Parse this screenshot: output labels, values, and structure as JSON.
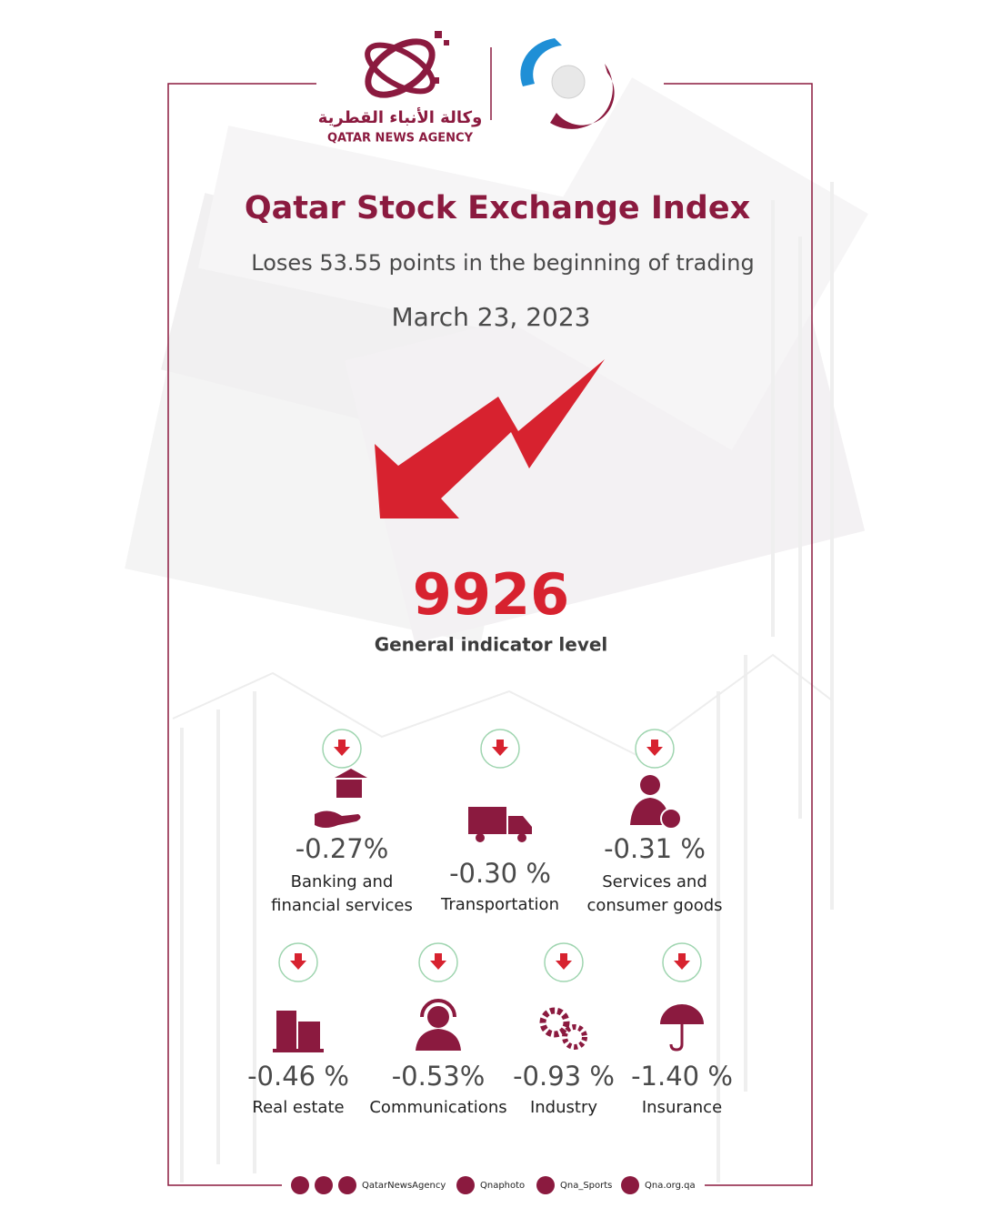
{
  "logo": {
    "arabic": "وكالة الأنباء القطرية",
    "english": "QATAR NEWS AGENCY"
  },
  "header": {
    "title": "Qatar Stock Exchange Index",
    "subtitle": "Loses 53.55 points in the beginning of trading",
    "date": "March 23, 2023"
  },
  "indicator": {
    "value": "9926",
    "label": "General indicator level"
  },
  "sectors": [
    {
      "change": "-0.27%",
      "name": [
        "Banking and",
        "financial services"
      ]
    },
    {
      "change": "-0.30 %",
      "name": [
        "Transportation"
      ]
    },
    {
      "change": "-0.31 %",
      "name": [
        "Services and",
        "consumer goods"
      ]
    },
    {
      "change": "-0.46 %",
      "name": [
        "Real estate"
      ]
    },
    {
      "change": "-0.53%",
      "name": [
        "Communications"
      ]
    },
    {
      "change": "-0.93 %",
      "name": [
        "Industry"
      ]
    },
    {
      "change": "-1.40 %",
      "name": [
        "Insurance"
      ]
    }
  ],
  "footer": [
    "QatarNewsAgency",
    "Qnaphoto",
    "Qna_Sports",
    "Qna.org.qa"
  ]
}
